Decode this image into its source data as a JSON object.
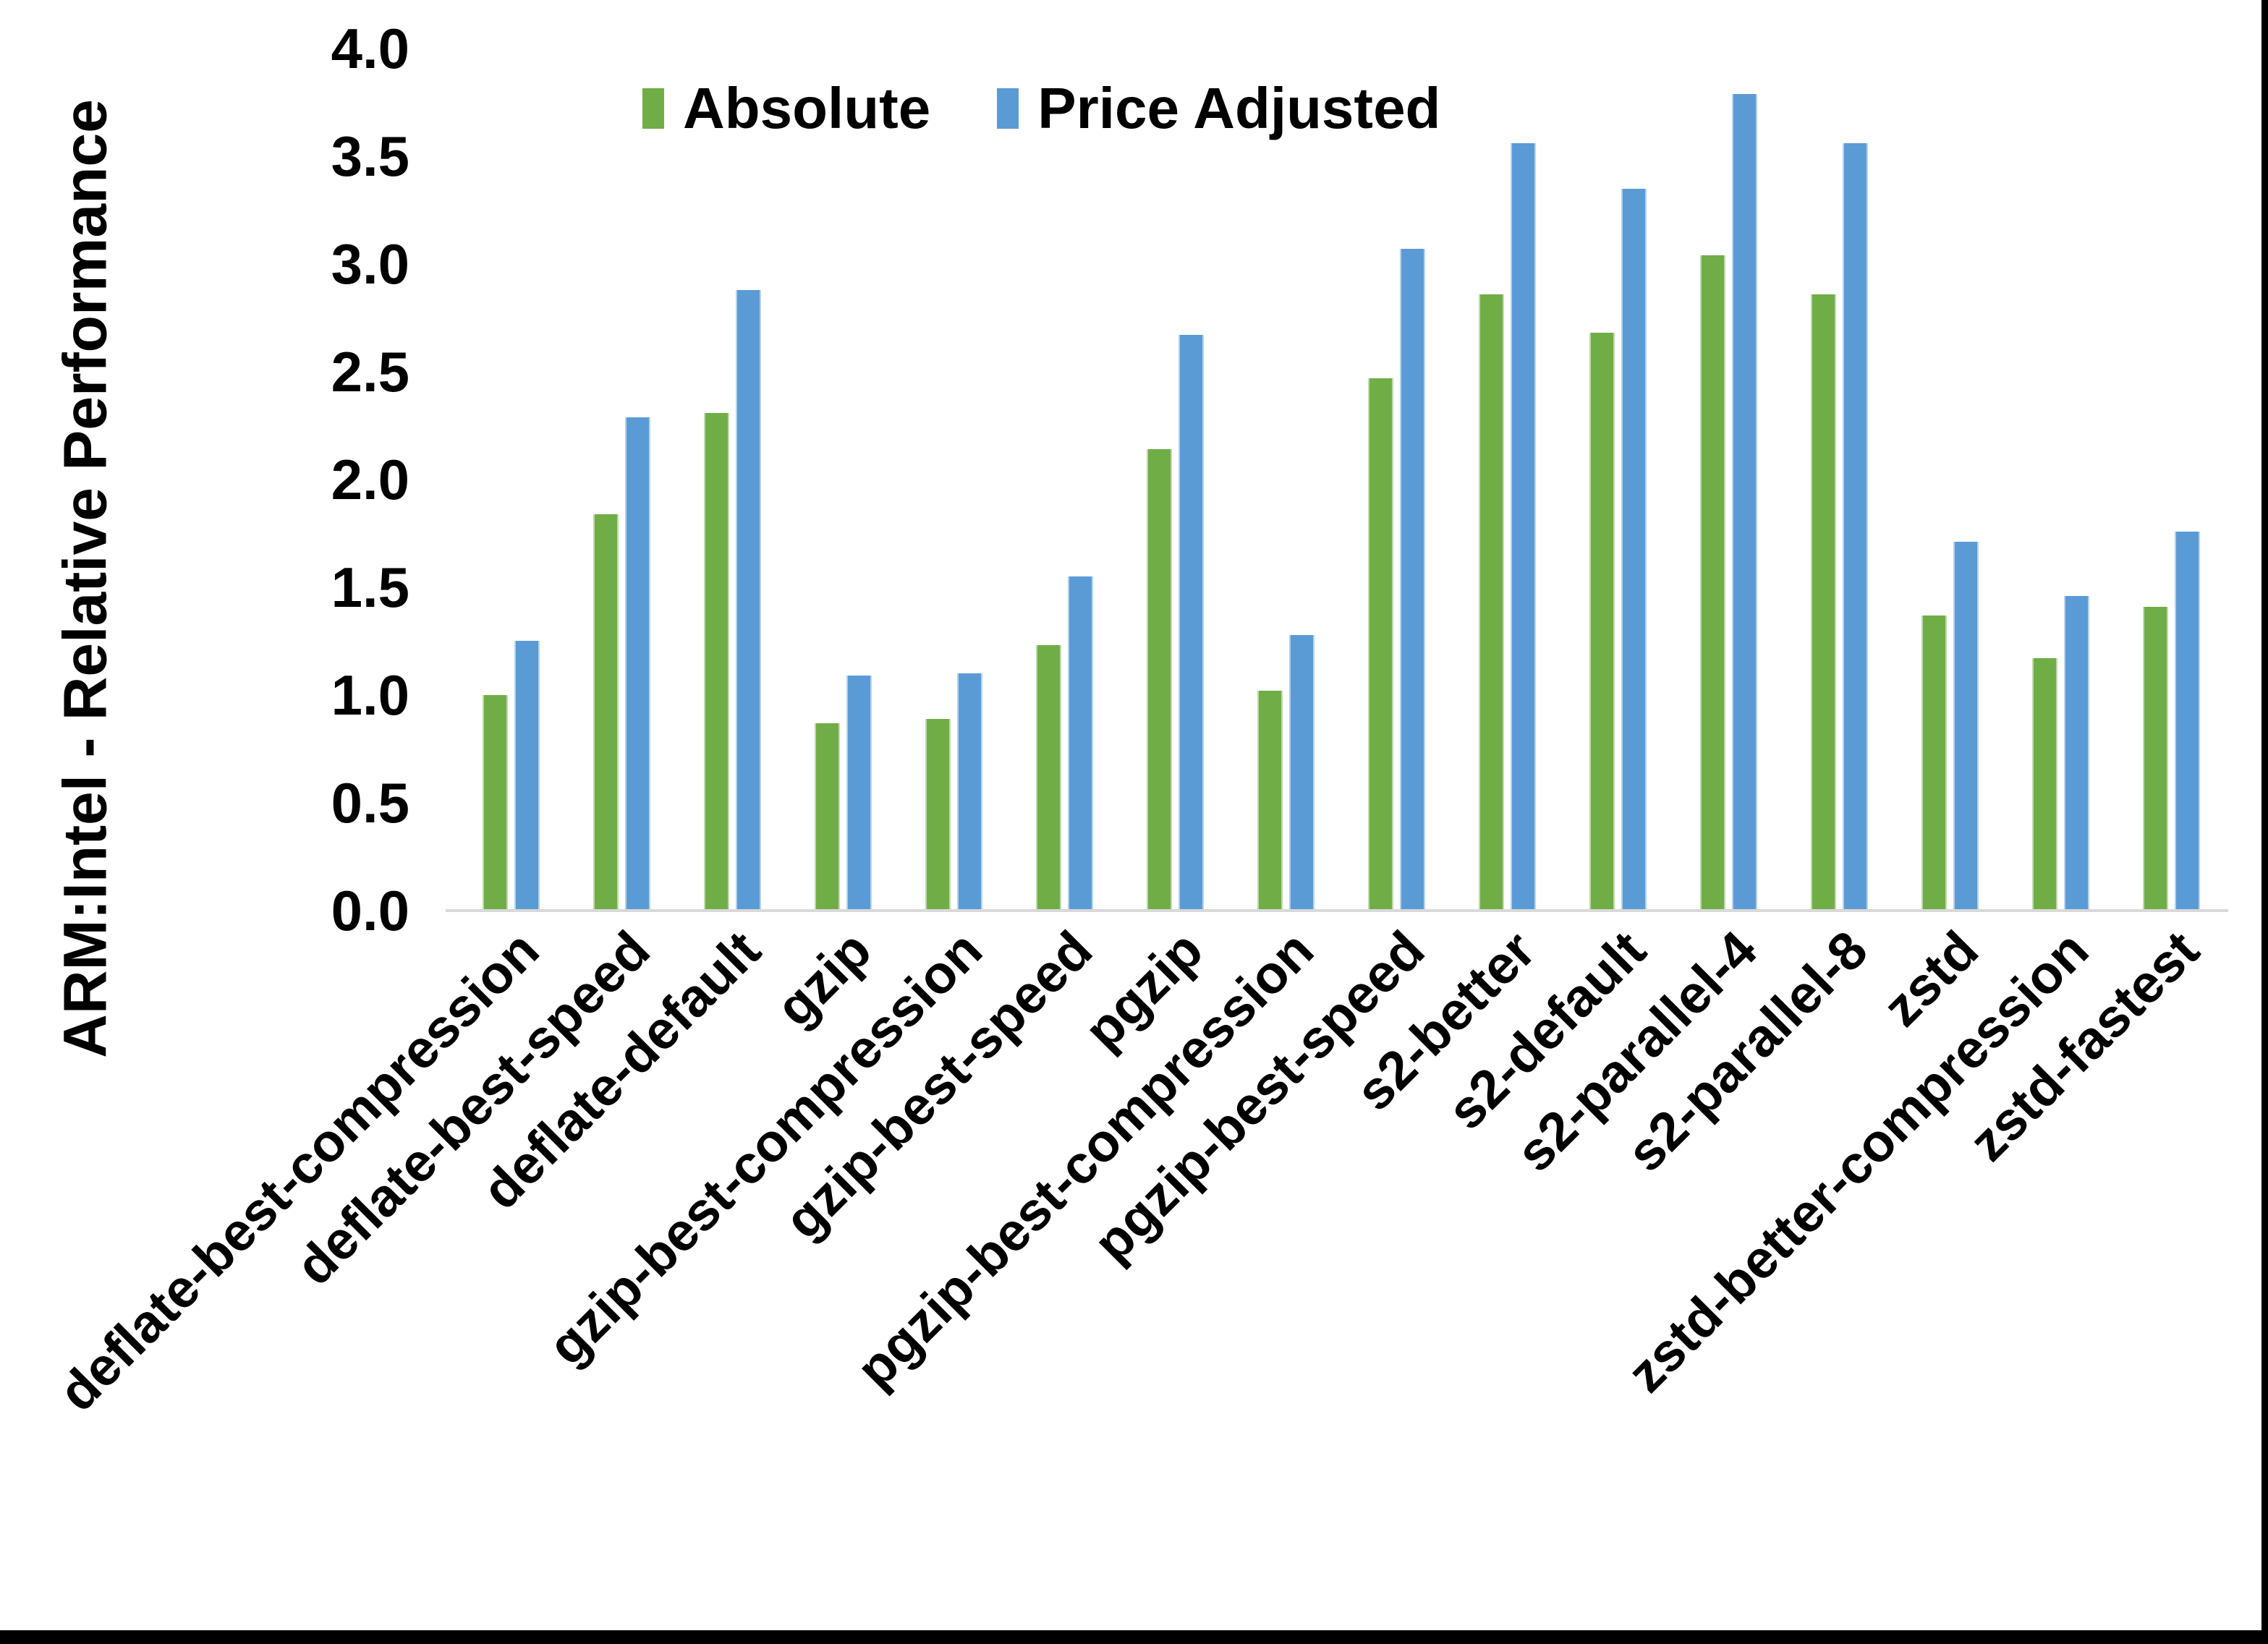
{
  "chart_data": {
    "type": "bar",
    "title": "",
    "ylabel": "ARM:Intel - Relative Performance",
    "xlabel": "",
    "ylim": [
      0.0,
      4.0
    ],
    "ytick_step": 0.5,
    "ytick_labels": [
      "0.0",
      "0.5",
      "1.0",
      "1.5",
      "2.0",
      "2.5",
      "3.0",
      "3.5",
      "4.0"
    ],
    "grid": false,
    "legend_position": "top-center",
    "categories": [
      "deflate-best-compression",
      "deflate-best-speed",
      "deflate-default",
      "gzip",
      "gzip-best-compression",
      "gzip-best-speed",
      "pgzip",
      "pgzip-best-compression",
      "pgzip-best-speed",
      "s2-better",
      "s2-default",
      "s2-parallel-4",
      "s2-parallel-8",
      "zstd",
      "zstd-better-compression",
      "zstd-fastest"
    ],
    "series": [
      {
        "name": "Absolute",
        "color": "#70AD47",
        "values": [
          1.0,
          1.84,
          2.31,
          0.87,
          0.89,
          1.23,
          2.14,
          1.02,
          2.47,
          2.86,
          2.68,
          3.04,
          2.86,
          1.37,
          1.17,
          1.41
        ]
      },
      {
        "name": "Price Adjusted",
        "color": "#5B9BD5",
        "values": [
          1.25,
          2.29,
          2.88,
          1.09,
          1.1,
          1.55,
          2.67,
          1.28,
          3.07,
          3.56,
          3.35,
          3.79,
          3.56,
          1.71,
          1.46,
          1.76
        ]
      }
    ],
    "axis_line_color": "#D9D9D9",
    "text_color": "#000000"
  },
  "frame": {
    "bottom_bar_color": "#000000",
    "right_bar_color": "#000000"
  }
}
